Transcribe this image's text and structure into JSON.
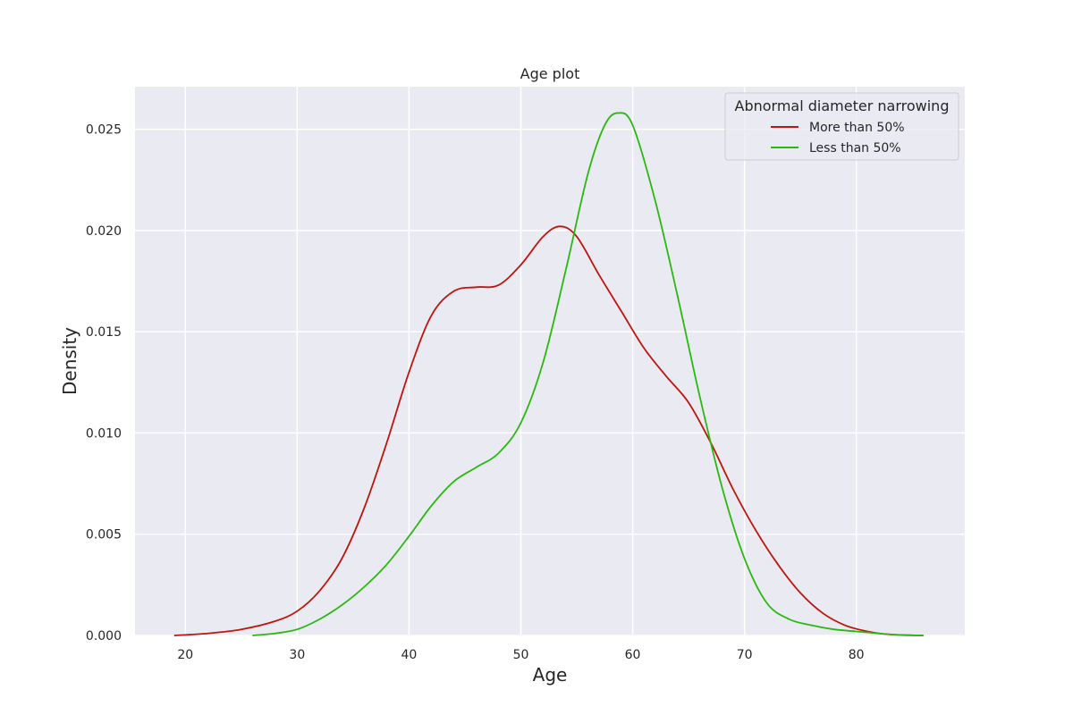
{
  "chart_data": {
    "type": "line",
    "title": "Age plot",
    "xlabel": "Age",
    "ylabel": "Density",
    "xlim": [
      15.5,
      89.7
    ],
    "ylim": [
      0,
      0.0271
    ],
    "xticks": [
      20,
      30,
      40,
      50,
      60,
      70,
      80
    ],
    "yticks": [
      0.0,
      0.005,
      0.01,
      0.015,
      0.02,
      0.025
    ],
    "ytick_labels": [
      "0.000",
      "0.005",
      "0.010",
      "0.015",
      "0.020",
      "0.025"
    ],
    "grid": true,
    "background": "#eaeaf2",
    "legend": {
      "title": "Abnormal diameter narrowing",
      "position": "top-right"
    },
    "series": [
      {
        "name": "More than 50%",
        "color": "#c0140c",
        "x": [
          19,
          22,
          25,
          28,
          30,
          32,
          34,
          36,
          38,
          40,
          42,
          44,
          46,
          48,
          50,
          52,
          53.5,
          55,
          57,
          59,
          61,
          63,
          65,
          67,
          69,
          71,
          73,
          75,
          77,
          79,
          81,
          83,
          86
        ],
        "y": [
          0.0,
          0.0001,
          0.0003,
          0.0007,
          0.0012,
          0.0022,
          0.0038,
          0.0063,
          0.0095,
          0.013,
          0.0158,
          0.017,
          0.0172,
          0.0173,
          0.0183,
          0.0197,
          0.0202,
          0.0197,
          0.0178,
          0.016,
          0.0142,
          0.0128,
          0.0115,
          0.0095,
          0.0072,
          0.0052,
          0.0035,
          0.0021,
          0.0011,
          0.0005,
          0.0002,
          5e-05,
          0.0
        ]
      },
      {
        "name": "Less than 50%",
        "color": "#2ab90e",
        "x": [
          26,
          28,
          30,
          32,
          34,
          36,
          38,
          40,
          42,
          44,
          46,
          48,
          50,
          52,
          54,
          56,
          57.5,
          58.7,
          60,
          62,
          64,
          66,
          68,
          70,
          72,
          74,
          76,
          78,
          80,
          82,
          84,
          86
        ],
        "y": [
          0.0,
          0.0001,
          0.0003,
          0.0008,
          0.0015,
          0.0024,
          0.0035,
          0.0049,
          0.0064,
          0.0076,
          0.0083,
          0.009,
          0.0105,
          0.0135,
          0.018,
          0.0228,
          0.0252,
          0.0258,
          0.0252,
          0.0215,
          0.0168,
          0.0118,
          0.0073,
          0.0038,
          0.0016,
          0.0008,
          0.0005,
          0.0003,
          0.0002,
          0.0001,
          2e-05,
          0.0
        ]
      }
    ]
  }
}
